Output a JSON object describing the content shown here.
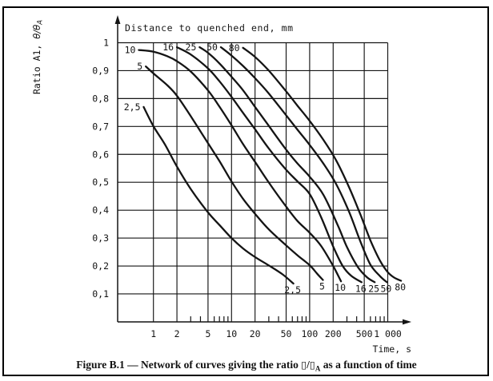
{
  "page": {
    "colors": {
      "ink": "#141414",
      "paper": "#ffffff"
    }
  },
  "figure": {
    "header": "Distance to quenched end, mm",
    "x_axis": {
      "label": "Time, s",
      "ticks": [
        {
          "v": 1,
          "label": "1"
        },
        {
          "v": 2,
          "label": "2"
        },
        {
          "v": 5,
          "label": "5"
        },
        {
          "v": 10,
          "label": "10"
        },
        {
          "v": 20,
          "label": "20"
        },
        {
          "v": 50,
          "label": "50"
        },
        {
          "v": 100,
          "label": "100"
        },
        {
          "v": 200,
          "label": "200"
        },
        {
          "v": 500,
          "label": "500"
        },
        {
          "v": 1000,
          "label": "1 000"
        }
      ],
      "minor_ticks": [
        3,
        4,
        6,
        7,
        8,
        9,
        30,
        40,
        60,
        70,
        80,
        90,
        300,
        400,
        600,
        700,
        800,
        900
      ]
    },
    "y_axis": {
      "label_prefix": "Ratio A1, ",
      "label_math": "θ/θ",
      "label_sub": "A",
      "ticks": [
        {
          "v": 1.0,
          "label": "1"
        },
        {
          "v": 0.9,
          "label": "0,9"
        },
        {
          "v": 0.8,
          "label": "0,8"
        },
        {
          "v": 0.7,
          "label": "0,7"
        },
        {
          "v": 0.6,
          "label": "0,6"
        },
        {
          "v": 0.5,
          "label": "0,5"
        },
        {
          "v": 0.4,
          "label": "0,4"
        },
        {
          "v": 0.3,
          "label": "0,3"
        },
        {
          "v": 0.2,
          "label": "0,2"
        },
        {
          "v": 0.1,
          "label": "0,1"
        }
      ]
    }
  },
  "caption": {
    "text_before": "Figure B.1 — Network of curves giving the ratio ",
    "box1": "▯",
    "slash": "/",
    "box2": "▯",
    "sub": "A",
    "text_after": " as a function of time"
  },
  "chart_data": {
    "type": "line",
    "x_scale": "log",
    "title": "Distance to quenched end, mm",
    "xlabel": "Time, s",
    "ylabel": "Ratio A1, θ/θA",
    "xlim": [
      0.35,
      1500
    ],
    "ylim": [
      0,
      1
    ],
    "grid": true,
    "legend_note": "each curve is labelled at both ends with the distance to the quenched end in mm",
    "series": [
      {
        "name": "2,5",
        "distance_mm": 2.5,
        "points": [
          [
            0.75,
            0.77
          ],
          [
            1,
            0.701
          ],
          [
            1.4,
            0.636
          ],
          [
            2,
            0.556
          ],
          [
            3,
            0.476
          ],
          [
            5,
            0.392
          ],
          [
            7,
            0.347
          ],
          [
            10,
            0.3
          ],
          [
            14,
            0.263
          ],
          [
            20,
            0.232
          ],
          [
            30,
            0.202
          ],
          [
            45,
            0.17
          ],
          [
            62,
            0.137
          ]
        ]
      },
      {
        "name": "5",
        "distance_mm": 5,
        "points": [
          [
            0.8,
            0.915
          ],
          [
            1,
            0.89
          ],
          [
            1.5,
            0.848
          ],
          [
            2,
            0.81
          ],
          [
            3,
            0.737
          ],
          [
            5,
            0.64
          ],
          [
            7,
            0.576
          ],
          [
            10,
            0.503
          ],
          [
            14,
            0.441
          ],
          [
            20,
            0.387
          ],
          [
            30,
            0.331
          ],
          [
            50,
            0.274
          ],
          [
            70,
            0.238
          ],
          [
            100,
            0.203
          ],
          [
            125,
            0.172
          ],
          [
            148,
            0.15
          ]
        ]
      },
      {
        "name": "10",
        "distance_mm": 10,
        "points": [
          [
            0.65,
            0.974
          ],
          [
            1,
            0.968
          ],
          [
            1.5,
            0.952
          ],
          [
            2,
            0.934
          ],
          [
            3,
            0.897
          ],
          [
            5,
            0.829
          ],
          [
            7,
            0.771
          ],
          [
            10,
            0.704
          ],
          [
            14,
            0.637
          ],
          [
            20,
            0.573
          ],
          [
            30,
            0.499
          ],
          [
            50,
            0.413
          ],
          [
            70,
            0.361
          ],
          [
            100,
            0.319
          ],
          [
            140,
            0.272
          ],
          [
            200,
            0.2
          ],
          [
            252,
            0.145
          ]
        ]
      },
      {
        "name": "16",
        "distance_mm": 16,
        "points": [
          [
            2,
            0.984
          ],
          [
            3,
            0.958
          ],
          [
            5,
            0.908
          ],
          [
            7,
            0.862
          ],
          [
            10,
            0.806
          ],
          [
            14,
            0.749
          ],
          [
            20,
            0.69
          ],
          [
            30,
            0.621
          ],
          [
            50,
            0.545
          ],
          [
            70,
            0.503
          ],
          [
            100,
            0.458
          ],
          [
            140,
            0.375
          ],
          [
            200,
            0.27
          ],
          [
            265,
            0.2
          ],
          [
            340,
            0.165
          ],
          [
            462,
            0.142
          ]
        ]
      },
      {
        "name": "25",
        "distance_mm": 25,
        "points": [
          [
            3.9,
            0.984
          ],
          [
            5,
            0.964
          ],
          [
            7,
            0.926
          ],
          [
            10,
            0.878
          ],
          [
            14,
            0.83
          ],
          [
            20,
            0.77
          ],
          [
            30,
            0.702
          ],
          [
            50,
            0.617
          ],
          [
            70,
            0.567
          ],
          [
            100,
            0.52
          ],
          [
            150,
            0.455
          ],
          [
            230,
            0.345
          ],
          [
            300,
            0.268
          ],
          [
            410,
            0.198
          ],
          [
            540,
            0.16
          ],
          [
            680,
            0.142
          ]
        ]
      },
      {
        "name": "50",
        "distance_mm": 50,
        "points": [
          [
            7.3,
            0.984
          ],
          [
            10,
            0.954
          ],
          [
            14,
            0.917
          ],
          [
            20,
            0.873
          ],
          [
            30,
            0.818
          ],
          [
            50,
            0.74
          ],
          [
            70,
            0.688
          ],
          [
            100,
            0.634
          ],
          [
            150,
            0.567
          ],
          [
            220,
            0.492
          ],
          [
            320,
            0.394
          ],
          [
            450,
            0.285
          ],
          [
            600,
            0.205
          ],
          [
            800,
            0.163
          ],
          [
            975,
            0.142
          ]
        ]
      },
      {
        "name": "80",
        "distance_mm": 80,
        "points": [
          [
            14,
            0.982
          ],
          [
            20,
            0.949
          ],
          [
            30,
            0.9
          ],
          [
            50,
            0.826
          ],
          [
            70,
            0.774
          ],
          [
            100,
            0.72
          ],
          [
            150,
            0.652
          ],
          [
            220,
            0.577
          ],
          [
            320,
            0.482
          ],
          [
            450,
            0.382
          ],
          [
            600,
            0.292
          ],
          [
            800,
            0.218
          ],
          [
            1000,
            0.178
          ],
          [
            1200,
            0.159
          ],
          [
            1480,
            0.147
          ]
        ]
      }
    ]
  }
}
